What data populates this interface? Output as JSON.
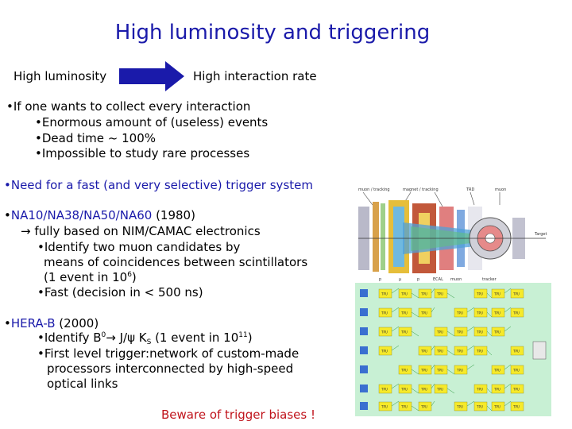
{
  "slide": {
    "title": "High luminosity and triggering",
    "flow": {
      "from": "High luminosity",
      "to": "High interaction rate"
    },
    "block1": {
      "lead": "•If one wants to collect every interaction",
      "items": [
        "•Enormous amount of (useless) events",
        "•Dead time ~ 100%",
        "•Impossible to study rare processes"
      ]
    },
    "block2": {
      "lead": "•Need for a fast (and very selective) trigger system"
    },
    "block3": {
      "lead_prefix": "•",
      "lead_link": "NA10/NA38/NA50/NA60",
      "lead_year": " (1980)",
      "sub": "→ fully based on NIM/CAMAC electronics",
      "item1_l1": "•Identify two muon candidates by",
      "item1_l2": "means of coincidences between scintillators",
      "item1_l3_pre": "(1 event in 10",
      "item1_l3_exp": "6",
      "item1_l3_post": ")",
      "item2": "•Fast (decision in < 500 ns)"
    },
    "block4": {
      "lead_prefix": "•",
      "lead_link": "HERA-B",
      "lead_year": " (2000)",
      "item1_pre": "•Identify B",
      "item1_sup0": "0",
      "item1_mid": "→ J/ψ K",
      "item1_sub": "S",
      "item1_post": " (1 event in 10",
      "item1_sup11": "11",
      "item1_end": ")",
      "item2_l1": "•First level trigger:network of custom-made",
      "item2_l2": "processors interconnected by high-speed",
      "item2_l3": "optical links"
    },
    "footer": "Beware of trigger biases !"
  },
  "figure": {
    "tfu_label": "TPU",
    "top_labels": [
      "muon / tracking",
      "magnet / tracking",
      "TRD",
      "muon"
    ],
    "target_label": "Target",
    "column_labels": [
      "p",
      "μ",
      "p",
      "ECAL",
      "muon",
      "tracker"
    ],
    "colors": {
      "title": "#1a1aaa",
      "footer": "#c0141c",
      "arrow": "#1a1aaa",
      "tpu": "#f6ea2a",
      "grid_bg": "#c8f0d4"
    }
  }
}
